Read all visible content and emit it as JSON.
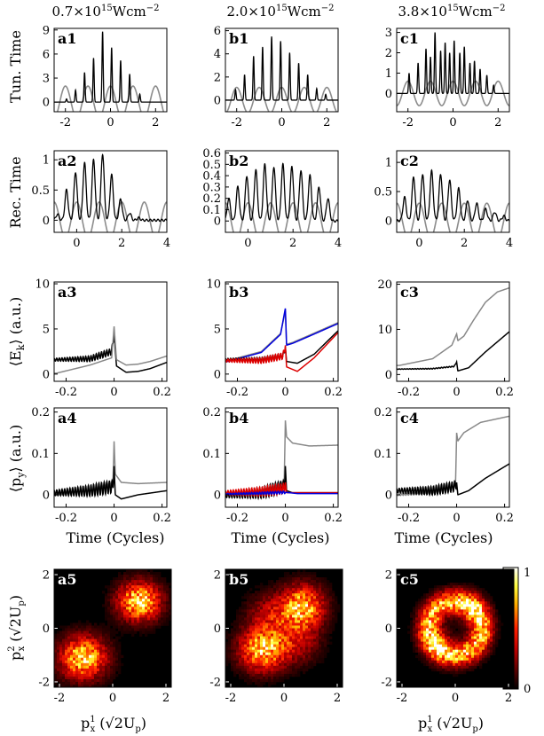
{
  "figure": {
    "column_titles": [
      {
        "base": "0.7×10",
        "exp": "15",
        "unit": "Wcm",
        "uexp": "−2"
      },
      {
        "base": "2.0×10",
        "exp": "15",
        "unit": "Wcm",
        "uexp": "−2"
      },
      {
        "base": "3.8×10",
        "exp": "15",
        "unit": "Wcm",
        "uexp": "−2"
      }
    ],
    "row_ylabels": {
      "row1": "Tun. Time",
      "row2": "Rec. Time",
      "row3": {
        "main": "⟨E",
        "sub": "k",
        "after": "⟩ (a.u.)"
      },
      "row4": {
        "main": "⟨p",
        "sub": "y",
        "after": "⟩ (a.u.)"
      },
      "row5": {
        "main": "p",
        "sub": "x",
        "sup": "2",
        "after": " (√2U",
        "sub2": "p",
        "after2": ")"
      }
    },
    "time_xlabel": "Time (Cycles)",
    "map_xlabel": {
      "main": "p",
      "sub": "x",
      "sup": "1",
      "after": " (√2U",
      "sub2": "p",
      "after2": ")"
    },
    "colorbar": {
      "ticks": [
        "0",
        "1"
      ],
      "range": [
        0,
        1
      ]
    }
  },
  "chart_data": [
    {
      "panel": "a1",
      "type": "line",
      "xlim": [
        -2.5,
        2.5
      ],
      "ylim": [
        -1.2,
        9.2
      ],
      "xticks": [
        -2,
        0,
        2
      ],
      "yticks": [
        0,
        3,
        6,
        9
      ],
      "reference_amplitude": 2.0,
      "peaks": [
        [
          -1.95,
          0.4
        ],
        [
          -1.55,
          1.5
        ],
        [
          -1.15,
          3.7
        ],
        [
          -0.75,
          5.5
        ],
        [
          -0.35,
          8.8
        ],
        [
          0.05,
          6.8
        ],
        [
          0.45,
          5.2
        ],
        [
          0.85,
          3.5
        ],
        [
          1.3,
          1.0
        ]
      ]
    },
    {
      "panel": "b1",
      "type": "line",
      "xlim": [
        -2.5,
        2.5
      ],
      "ylim": [
        -1.0,
        6.2
      ],
      "xticks": [
        -2,
        0,
        2
      ],
      "yticks": [
        0,
        2,
        4,
        6
      ],
      "reference_amplitude": 1.1,
      "peaks": [
        [
          -2.05,
          0.9
        ],
        [
          -1.65,
          2.2
        ],
        [
          -1.25,
          3.8
        ],
        [
          -0.85,
          4.6
        ],
        [
          -0.45,
          5.5
        ],
        [
          -0.05,
          5.1
        ],
        [
          0.35,
          4.1
        ],
        [
          0.75,
          3.2
        ],
        [
          1.15,
          2.2
        ],
        [
          1.55,
          1.0
        ],
        [
          1.95,
          0.5
        ]
      ]
    },
    {
      "panel": "c1",
      "type": "line",
      "xlim": [
        -2.5,
        2.5
      ],
      "ylim": [
        -0.9,
        3.2
      ],
      "xticks": [
        -2,
        0,
        2
      ],
      "yticks": [
        0,
        1,
        2,
        3
      ],
      "reference_amplitude": 0.6,
      "peaks": [
        [
          -1.95,
          1.0
        ],
        [
          -1.55,
          1.5
        ],
        [
          -1.2,
          2.2
        ],
        [
          -1.0,
          1.8
        ],
        [
          -0.8,
          3.0
        ],
        [
          -0.55,
          2.1
        ],
        [
          -0.35,
          2.5
        ],
        [
          -0.15,
          2.0
        ],
        [
          0.05,
          2.6
        ],
        [
          0.3,
          2.0
        ],
        [
          0.5,
          2.3
        ],
        [
          0.75,
          1.5
        ],
        [
          0.95,
          1.6
        ],
        [
          1.2,
          1.2
        ],
        [
          1.5,
          0.9
        ],
        [
          1.8,
          0.4
        ]
      ]
    },
    {
      "panel": "a2",
      "type": "line",
      "xlim": [
        -1,
        4
      ],
      "ylim": [
        -0.2,
        1.15
      ],
      "xticks": [
        0,
        2,
        4
      ],
      "yticks": [
        0,
        0.5,
        1
      ],
      "reference_amplitude": 0.3,
      "peaks": [
        [
          -0.85,
          0.1
        ],
        [
          -0.45,
          0.5
        ],
        [
          -0.05,
          0.8
        ],
        [
          0.35,
          0.95
        ],
        [
          0.75,
          1.0
        ],
        [
          1.15,
          1.1
        ],
        [
          1.55,
          0.75
        ],
        [
          1.95,
          0.35
        ],
        [
          2.35,
          0.12
        ],
        [
          2.75,
          0.04
        ]
      ]
    },
    {
      "panel": "b2",
      "type": "line",
      "xlim": [
        -1,
        4
      ],
      "ylim": [
        -0.1,
        0.62
      ],
      "xticks": [
        0,
        2,
        4
      ],
      "yticks": [
        0,
        0.1,
        0.2,
        0.3,
        0.4,
        0.5,
        0.6
      ],
      "reference_amplitude": 0.16,
      "peaks": [
        [
          -0.85,
          0.2
        ],
        [
          -0.45,
          0.3
        ],
        [
          -0.05,
          0.4
        ],
        [
          0.35,
          0.45
        ],
        [
          0.75,
          0.5
        ],
        [
          1.15,
          0.48
        ],
        [
          1.55,
          0.5
        ],
        [
          1.95,
          0.48
        ],
        [
          2.35,
          0.45
        ],
        [
          2.75,
          0.4
        ],
        [
          3.15,
          0.3
        ],
        [
          3.55,
          0.2
        ]
      ]
    },
    {
      "panel": "c2",
      "type": "line",
      "xlim": [
        -1,
        4
      ],
      "ylim": [
        -0.2,
        1.2
      ],
      "xticks": [
        0,
        2,
        4
      ],
      "yticks": [
        0,
        0.5,
        1
      ],
      "reference_amplitude": 0.3,
      "peaks": [
        [
          -0.65,
          0.4
        ],
        [
          -0.25,
          0.75
        ],
        [
          0.15,
          0.8
        ],
        [
          0.55,
          0.85
        ],
        [
          0.95,
          0.8
        ],
        [
          1.35,
          0.7
        ],
        [
          1.75,
          0.55
        ],
        [
          2.15,
          0.35
        ],
        [
          2.55,
          0.3
        ],
        [
          2.95,
          0.2
        ],
        [
          3.35,
          0.15
        ],
        [
          3.75,
          0.08
        ]
      ]
    },
    {
      "panel": "a3",
      "type": "line",
      "xlim": [
        -0.25,
        0.22
      ],
      "ylim": [
        -0.8,
        10.2
      ],
      "xticks": [
        -0.2,
        0,
        0.2
      ],
      "yticks": [
        0,
        5,
        10
      ],
      "series": [
        {
          "color": "#000000",
          "x": [
            -0.24,
            -0.1,
            -0.01,
            0,
            0.01,
            0.05,
            0.1,
            0.15,
            0.22
          ],
          "y": [
            1.6,
            1.7,
            2.5,
            4.5,
            0.9,
            0.2,
            0.3,
            0.6,
            1.3
          ],
          "oscillation": 0.35
        },
        {
          "color": "#888888",
          "x": [
            -0.24,
            -0.1,
            -0.01,
            0,
            0.01,
            0.05,
            0.1,
            0.15,
            0.22
          ],
          "y": [
            0.1,
            1.0,
            1.8,
            5.3,
            1.6,
            1.0,
            1.1,
            1.4,
            2.0
          ],
          "oscillation": 0
        }
      ]
    },
    {
      "panel": "b3",
      "type": "line",
      "xlim": [
        -0.25,
        0.22
      ],
      "ylim": [
        -0.8,
        10.2
      ],
      "xticks": [
        -0.2,
        0,
        0.2
      ],
      "yticks": [
        0,
        5,
        10
      ],
      "series": [
        {
          "color": "#888888",
          "x": [
            -0.24,
            -0.1,
            -0.02,
            0,
            0.005,
            0.03,
            0.1,
            0.22
          ],
          "y": [
            1.5,
            2.5,
            4.5,
            7.0,
            3.3,
            3.5,
            4.3,
            5.7
          ],
          "oscillation": 0
        },
        {
          "color": "#0000dd",
          "x": [
            -0.24,
            -0.1,
            -0.02,
            0,
            0.005,
            0.03,
            0.1,
            0.22
          ],
          "y": [
            1.4,
            2.4,
            4.4,
            7.3,
            3.2,
            3.4,
            4.2,
            5.6
          ],
          "oscillation": 0
        },
        {
          "color": "#000000",
          "x": [
            -0.24,
            -0.1,
            -0.01,
            0,
            0.005,
            0.05,
            0.12,
            0.22
          ],
          "y": [
            1.6,
            1.6,
            2.0,
            3.0,
            1.4,
            1.2,
            2.2,
            4.8
          ],
          "oscillation": 0.3
        },
        {
          "color": "#dd0000",
          "x": [
            -0.24,
            -0.1,
            -0.01,
            0,
            0.005,
            0.05,
            0.12,
            0.22
          ],
          "y": [
            1.5,
            1.5,
            2.0,
            3.2,
            0.8,
            0.3,
            1.8,
            4.6
          ],
          "oscillation": 0.35
        }
      ]
    },
    {
      "panel": "c3",
      "type": "line",
      "xlim": [
        -0.25,
        0.22
      ],
      "ylim": [
        -1.5,
        20.5
      ],
      "xticks": [
        -0.2,
        0,
        0.2
      ],
      "yticks": [
        0,
        10,
        20
      ],
      "series": [
        {
          "color": "#888888",
          "x": [
            -0.24,
            -0.1,
            -0.02,
            0,
            0.005,
            0.03,
            0.07,
            0.12,
            0.17,
            0.22
          ],
          "y": [
            2.0,
            3.5,
            6.5,
            9.0,
            7.5,
            8.5,
            12.0,
            16.0,
            18.3,
            19.2
          ],
          "oscillation": 0
        },
        {
          "color": "#000000",
          "x": [
            -0.24,
            -0.1,
            -0.01,
            0,
            0.005,
            0.05,
            0.12,
            0.22
          ],
          "y": [
            1.2,
            1.3,
            1.8,
            2.8,
            0.8,
            1.5,
            5.0,
            9.5
          ],
          "oscillation": 0.1
        }
      ]
    },
    {
      "panel": "a4",
      "type": "line",
      "xlim": [
        -0.25,
        0.22
      ],
      "ylim": [
        -0.03,
        0.21
      ],
      "xticks": [
        -0.2,
        0,
        0.2
      ],
      "yticks": [
        0,
        0.1,
        0.2
      ],
      "series": [
        {
          "color": "#888888",
          "x": [
            -0.24,
            -0.1,
            -0.005,
            0,
            0.005,
            0.03,
            0.1,
            0.22
          ],
          "y": [
            0.0,
            0.01,
            0.03,
            0.13,
            0.05,
            0.03,
            0.027,
            0.03
          ],
          "oscillation": 0.005
        },
        {
          "color": "#000000",
          "x": [
            -0.24,
            -0.1,
            -0.005,
            0,
            0.005,
            0.03,
            0.1,
            0.22
          ],
          "y": [
            0.005,
            0.01,
            0.02,
            0.07,
            0.0,
            -0.01,
            0.0,
            0.01
          ],
          "oscillation": 0.015
        }
      ]
    },
    {
      "panel": "b4",
      "type": "line",
      "xlim": [
        -0.25,
        0.22
      ],
      "ylim": [
        -0.03,
        0.21
      ],
      "xticks": [
        -0.2,
        0,
        0.2
      ],
      "yticks": [
        0,
        0.1,
        0.2
      ],
      "series": [
        {
          "color": "#888888",
          "x": [
            -0.24,
            -0.1,
            -0.005,
            0,
            0.005,
            0.03,
            0.1,
            0.22
          ],
          "y": [
            0.005,
            0.01,
            0.03,
            0.18,
            0.14,
            0.125,
            0.118,
            0.12
          ],
          "oscillation": 0.004
        },
        {
          "color": "#000000",
          "x": [
            -0.24,
            -0.1,
            -0.005,
            0,
            0.005,
            0.03,
            0.1,
            0.22
          ],
          "y": [
            0.0,
            0.005,
            0.02,
            0.07,
            0.01,
            0.005,
            0.005,
            0.005
          ],
          "oscillation": 0.015
        },
        {
          "color": "#dd0000",
          "x": [
            -0.24,
            -0.1,
            -0.005,
            0,
            0.005,
            0.05,
            0.22
          ],
          "y": [
            0.005,
            0.008,
            0.015,
            0.03,
            0.005,
            0.005,
            0.005
          ],
          "oscillation": 0.012
        },
        {
          "color": "#0000dd",
          "x": [
            -0.24,
            -0.1,
            0,
            0.05,
            0.22
          ],
          "y": [
            0.002,
            0.004,
            0.006,
            0.003,
            0.003
          ],
          "oscillation": 0.003
        }
      ]
    },
    {
      "panel": "c4",
      "type": "line",
      "xlim": [
        -0.25,
        0.22
      ],
      "ylim": [
        -0.03,
        0.21
      ],
      "xticks": [
        -0.2,
        0,
        0.2
      ],
      "yticks": [
        0,
        0.1,
        0.2
      ],
      "series": [
        {
          "color": "#888888",
          "x": [
            -0.24,
            -0.1,
            -0.005,
            0,
            0.005,
            0.03,
            0.1,
            0.18,
            0.22
          ],
          "y": [
            0.0,
            0.005,
            0.02,
            0.15,
            0.13,
            0.15,
            0.175,
            0.185,
            0.19
          ],
          "oscillation": 0.004
        },
        {
          "color": "#000000",
          "x": [
            -0.24,
            -0.1,
            -0.01,
            0,
            0.005,
            0.05,
            0.12,
            0.22
          ],
          "y": [
            0.01,
            0.01,
            0.02,
            0.03,
            0.0,
            0.01,
            0.04,
            0.075
          ],
          "oscillation": 0.012
        }
      ]
    },
    {
      "panel": "a5",
      "type": "heatmap",
      "xlim": [
        -2.2,
        2.2
      ],
      "ylim": [
        -2.2,
        2.2
      ],
      "xticks": [
        -2,
        0,
        2
      ],
      "yticks": [
        -2,
        0,
        2
      ],
      "blobs": [
        {
          "x": 1.0,
          "y": 1.0,
          "sx": 0.55,
          "sy": 0.5,
          "w": 1.0
        },
        {
          "x": -1.1,
          "y": -1.1,
          "sx": 0.6,
          "sy": 0.55,
          "w": 0.95
        }
      ]
    },
    {
      "panel": "b5",
      "type": "heatmap",
      "xlim": [
        -2.2,
        2.2
      ],
      "ylim": [
        -2.2,
        2.2
      ],
      "xticks": [
        -2,
        0,
        2
      ],
      "yticks": [
        -2,
        0,
        2
      ],
      "blobs": [
        {
          "x": 0.7,
          "y": 0.8,
          "sx": 0.55,
          "sy": 0.55,
          "w": 0.9
        },
        {
          "x": -0.8,
          "y": -0.8,
          "sx": 0.6,
          "sy": 0.55,
          "w": 0.9
        },
        {
          "x": -0.5,
          "y": 0.5,
          "sx": 0.6,
          "sy": 0.55,
          "w": 0.35
        },
        {
          "x": 0.5,
          "y": -0.5,
          "sx": 0.6,
          "sy": 0.55,
          "w": 0.35
        }
      ]
    },
    {
      "panel": "c5",
      "type": "heatmap",
      "xlim": [
        -2.2,
        2.2
      ],
      "ylim": [
        -2.2,
        2.2
      ],
      "xticks": [
        -2,
        0,
        2
      ],
      "yticks": [
        -2,
        0,
        2
      ],
      "ring": {
        "r": 1.0,
        "width": 0.3,
        "w": 0.9
      },
      "blobs": [
        {
          "x": 0.6,
          "y": 0.7,
          "sx": 0.4,
          "sy": 0.4,
          "w": 0.3
        },
        {
          "x": -0.6,
          "y": -0.6,
          "sx": 0.4,
          "sy": 0.4,
          "w": 0.3
        }
      ]
    }
  ]
}
